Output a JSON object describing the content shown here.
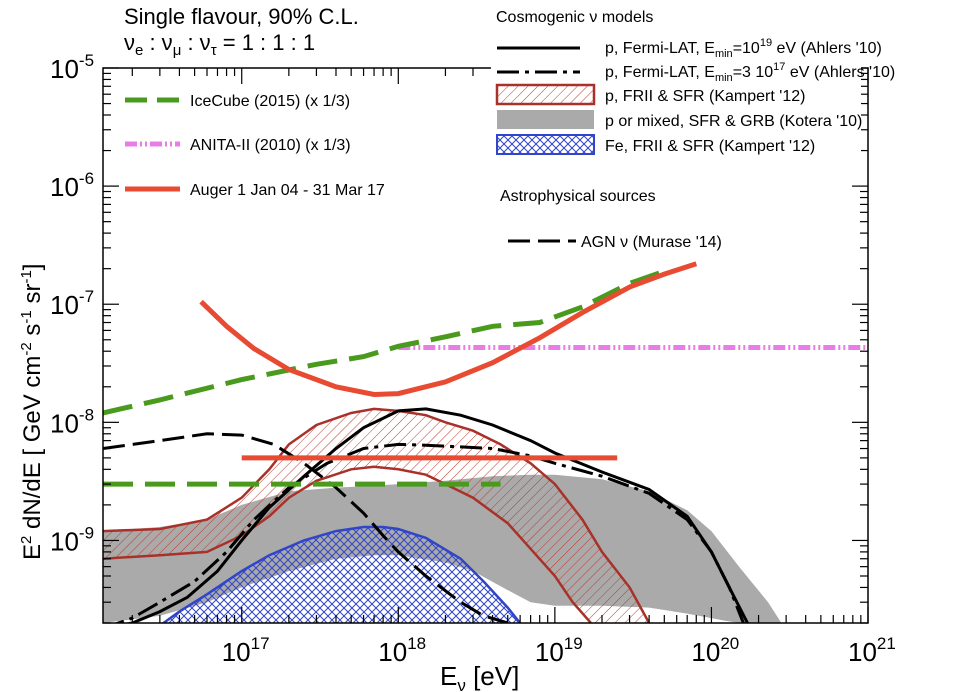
{
  "chart_data": {
    "type": "line",
    "title_line1": "Single flavour, 90% C.L.",
    "title_line2_base": "ν",
    "title_line2": "νe : νμ : ντ = 1 : 1 : 1",
    "xlabel": "Eν [eV]",
    "ylabel": "E² dN/dE  [ GeV cm⁻² s⁻¹ sr⁻¹ ]",
    "x_scale": "log",
    "y_scale": "log",
    "xlim": [
      1.3e+16,
      1e+21
    ],
    "ylim": [
      2e-10,
      1e-05
    ],
    "x_ticks": [
      {
        "value": 1e+17,
        "label": "10",
        "exp": "17"
      },
      {
        "value": 1e+18,
        "label": "10",
        "exp": "18"
      },
      {
        "value": 1e+19,
        "label": "10",
        "exp": "19"
      },
      {
        "value": 1e+20,
        "label": "10",
        "exp": "20"
      },
      {
        "value": 1e+21,
        "label": "10",
        "exp": "21"
      }
    ],
    "y_ticks": [
      {
        "value": 1e-09,
        "label": "10",
        "exp": "-9"
      },
      {
        "value": 1e-08,
        "label": "10",
        "exp": "-8"
      },
      {
        "value": 1e-07,
        "label": "10",
        "exp": "-7"
      },
      {
        "value": 1e-06,
        "label": "10",
        "exp": "-6"
      },
      {
        "value": 1e-05,
        "label": "10",
        "exp": "-5"
      }
    ],
    "grid": false,
    "legend_left": [
      {
        "label": "IceCube (2015) (x 1/3)",
        "color": "#4a9a1e",
        "style": "dashed"
      },
      {
        "label": "ANITA-II (2010) (x 1/3)",
        "color": "#e87de8",
        "style": "dash-dot-dot"
      },
      {
        "label": "Auger 1 Jan 04 - 31 Mar 17",
        "color": "#e84a32",
        "style": "solid"
      }
    ],
    "legend_right_header": "Cosmogenic  ν models",
    "legend_right": [
      {
        "label": "p, Fermi-LAT, E",
        "sub": "min",
        "tail": "=10",
        "sup": "19",
        "end": " eV (Ahlers '10)",
        "style": "solid",
        "color": "#000000"
      },
      {
        "label": "p, Fermi-LAT, E",
        "sub": "min",
        "tail": "=3 10",
        "sup": "17",
        "end": " eV (Ahlers '10)",
        "style": "dash-dot",
        "color": "#000000"
      },
      {
        "label": "p, FRII & SFR (Kampert '12)",
        "style": "hatched",
        "color": "#a8322a"
      },
      {
        "label": "p or mixed, SFR & GRB (Kotera '10)",
        "style": "band",
        "color": "#aaaaaa"
      },
      {
        "label": "Fe, FRII & SFR (Kampert '12)",
        "style": "crosshatch",
        "color": "#3045c8"
      }
    ],
    "astro_header": "Astrophysical sources",
    "astro_legend": [
      {
        "label": "AGN ν (Murase '14)",
        "style": "long-dash",
        "color": "#000000"
      }
    ],
    "series": {
      "auger_limit": {
        "x": [
          5.5e+16,
          8e+16,
          1.2e+17,
          2e+17,
          4e+17,
          7e+17,
          1e+18,
          2e+18,
          4e+18,
          8e+18,
          1.5e+19,
          3e+19,
          5e+19,
          8e+19
        ],
        "y": [
          1.05e-07,
          6.5e-08,
          4.2e-08,
          2.8e-08,
          2e-08,
          1.72e-08,
          1.75e-08,
          2.2e-08,
          3.2e-08,
          5.2e-08,
          8.5e-08,
          1.4e-07,
          1.8e-07,
          2.2e-07
        ]
      },
      "auger_integrated": {
        "x": [
          1e+17,
          2.5e+19
        ],
        "y": [
          5e-09,
          5e-09
        ]
      },
      "icecube_differential": {
        "x": [
          1.3e+16,
          3e+16,
          1e+17,
          3e+17,
          6e+17,
          1e+18,
          2e+18,
          4e+18,
          8e+18,
          1.5e+19,
          3e+19,
          5e+19
        ],
        "y": [
          1.2e-08,
          1.55e-08,
          2.3e-08,
          3.1e-08,
          3.6e-08,
          4.4e-08,
          5.3e-08,
          6.5e-08,
          7e-08,
          9.5e-08,
          1.5e-07,
          1.9e-07
        ]
      },
      "icecube_integrated": {
        "x": [
          1.3e+16,
          4.5e+18
        ],
        "y": [
          3e-09,
          3e-09
        ]
      },
      "anita": {
        "x": [
          1e+18,
          1e+21
        ],
        "y": [
          4.3e-08,
          4.3e-08
        ]
      },
      "ahlers_emin_1e19": {
        "x": [
          1.3e+16,
          2e+16,
          3e+16,
          4.5e+16,
          7e+16,
          1e+17,
          1.5e+17,
          2.5e+17,
          4e+17,
          6e+17,
          1e+18,
          1.5e+18,
          2.5e+18,
          4e+18,
          7e+18,
          1e+19,
          2e+19,
          4e+19,
          7e+19,
          1e+20,
          1.3e+20,
          1.7e+20
        ],
        "y": [
          1.8e-10,
          2e-10,
          2.5e-10,
          3.3e-10,
          5.5e-10,
          1e-09,
          1.9e-09,
          3.5e-09,
          6e-09,
          9e-09,
          1.25e-08,
          1.3e-08,
          1.15e-08,
          9.5e-09,
          7e-09,
          5.5e-09,
          3.8e-09,
          2.7e-09,
          1.6e-09,
          8e-10,
          4e-10,
          2e-10
        ]
      },
      "ahlers_emin_3e17": {
        "x": [
          1.3e+16,
          2e+16,
          3e+16,
          5e+16,
          8e+16,
          1.2e+17,
          2e+17,
          3.5e+17,
          6e+17,
          1e+18,
          1.5e+18,
          2.5e+18,
          4e+18,
          7e+18,
          1e+19,
          2e+19,
          4e+19,
          7e+19,
          1e+20,
          1.3e+20,
          1.6e+20
        ],
        "y": [
          1.8e-10,
          2.2e-10,
          3e-10,
          4.5e-10,
          8e-10,
          1.5e-09,
          2.8e-09,
          4.5e-09,
          6e-09,
          6.5e-09,
          6.4e-09,
          6.2e-09,
          6e-09,
          5.2e-09,
          4.5e-09,
          3.5e-09,
          2.5e-09,
          1.5e-09,
          8e-10,
          4e-10,
          2e-10
        ]
      },
      "agn_murase": {
        "x": [
          1.3e+16,
          3e+16,
          6e+16,
          1e+17,
          1.6e+17,
          2.5e+17,
          4e+17,
          6e+17,
          8e+17,
          1e+18,
          1.5e+18,
          2.5e+18,
          3.5e+18,
          5e+18
        ],
        "y": [
          6e-09,
          7e-09,
          8e-09,
          7.8e-09,
          6.5e-09,
          4.5e-09,
          2.8e-09,
          1.7e-09,
          1.1e-09,
          8e-10,
          5e-10,
          3e-10,
          2.3e-10,
          2e-10
        ]
      },
      "kampert_p_upper": {
        "x": [
          1.3e+16,
          3e+16,
          6e+16,
          1e+17,
          1.5e+17,
          2e+17,
          3e+17,
          5e+17,
          7e+17,
          1e+18,
          1.5e+18,
          2e+18,
          3e+18,
          4.5e+18,
          7e+18,
          1e+19,
          1.5e+19,
          2e+19,
          3e+19,
          4e+19
        ],
        "y": [
          1.2e-09,
          1.25e-09,
          1.5e-09,
          2.3e-09,
          4e-09,
          6.5e-09,
          9.5e-09,
          1.2e-08,
          1.3e-08,
          1.25e-08,
          1.15e-08,
          1e-08,
          8.5e-09,
          6.5e-09,
          4.5e-09,
          3e-09,
          1.5e-09,
          8e-10,
          4e-10,
          2e-10
        ]
      },
      "kampert_p_lower": {
        "x": [
          1.3e+16,
          3e+16,
          6e+16,
          1e+17,
          1.5e+17,
          2e+17,
          3e+17,
          5e+17,
          7e+17,
          1e+18,
          1.5e+18,
          2e+18,
          3e+18,
          5e+18,
          7e+18,
          1e+19,
          1.3e+19,
          1.7e+19
        ],
        "y": [
          7e-10,
          7.5e-10,
          8e-10,
          1.1e-09,
          1.6e-09,
          2.3e-09,
          3.2e-09,
          4e-09,
          4.2e-09,
          4e-09,
          3.6e-09,
          3e-09,
          2.3e-09,
          1.4e-09,
          8.5e-10,
          5e-10,
          3e-10,
          2e-10
        ]
      },
      "kotera_band_upper": {
        "x": [
          1.3e+16,
          3e+16,
          6e+16,
          1e+17,
          2e+17,
          4e+17,
          7e+17,
          1e+18,
          2e+18,
          4e+18,
          7e+18,
          1e+19,
          2e+19,
          4e+19,
          7e+19,
          1e+20,
          1.5e+20,
          2.3e+20,
          2.8e+20
        ],
        "y": [
          1.2e-09,
          1.3e-09,
          1.5e-09,
          2e-09,
          2.6e-09,
          2.8e-09,
          2.9e-09,
          3e-09,
          3.2e-09,
          3.5e-09,
          3.6e-09,
          3.6e-09,
          3.3e-09,
          2.6e-09,
          1.8e-09,
          1.2e-09,
          6e-10,
          3e-10,
          2e-10
        ]
      },
      "kotera_band_lower": {
        "x": [
          1.3e+16,
          3e+16,
          6e+16,
          1e+17,
          2e+17,
          4e+17,
          7e+17,
          1e+18,
          2e+18,
          3e+18,
          5e+18,
          7e+18,
          1e+19,
          2e+19,
          4e+19,
          7e+19,
          1e+20,
          1.2e+20,
          1.5e+20
        ],
        "y": [
          2e-10,
          2.3e-10,
          3e-10,
          4e-10,
          5.5e-10,
          7e-10,
          7.5e-10,
          7.5e-10,
          6.5e-10,
          5.5e-10,
          3.8e-10,
          3e-10,
          2.8e-10,
          2.8e-10,
          2.7e-10,
          2.4e-10,
          2.2e-10,
          2.1e-10,
          2e-10
        ]
      },
      "kampert_fe": {
        "x": [
          3e+16,
          4e+16,
          6e+16,
          1e+17,
          1.5e+17,
          2.5e+17,
          4e+17,
          6e+17,
          8e+17,
          1e+18,
          1.5e+18,
          2.5e+18,
          3.5e+18,
          5e+18,
          6e+18
        ],
        "y": [
          1.9e-10,
          2.5e-10,
          3.5e-10,
          5.5e-10,
          7.5e-10,
          1e-09,
          1.2e-09,
          1.3e-09,
          1.3e-09,
          1.25e-09,
          1.05e-09,
          7e-10,
          4.5e-10,
          2.7e-10,
          2e-10
        ]
      }
    }
  }
}
